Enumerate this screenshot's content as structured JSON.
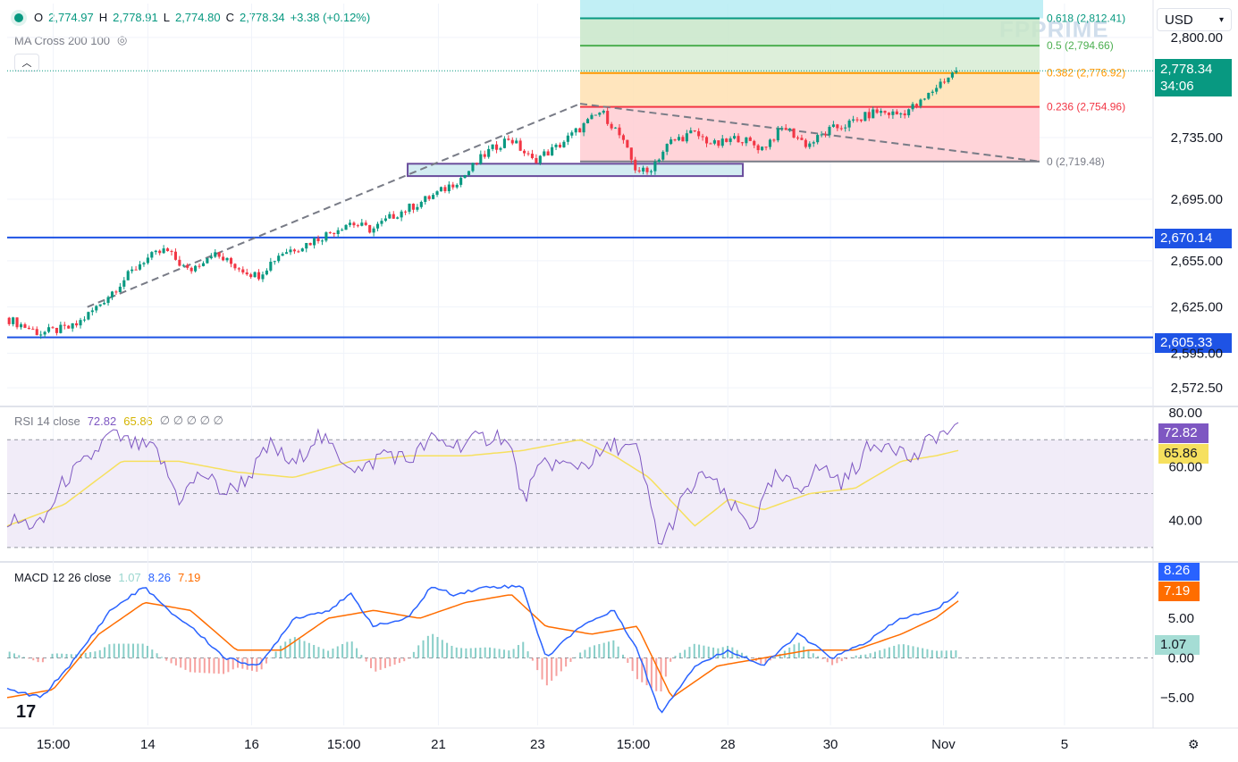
{
  "header": {
    "ohlc": {
      "o_label": "O",
      "o": "2,774.97",
      "h_label": "H",
      "h": "2,778.91",
      "l_label": "L",
      "l": "2,774.80",
      "c_label": "C",
      "c": "2,778.34",
      "change": "+3.38 (+0.12%)"
    },
    "indicator": "MA Cross 200 100",
    "currency": "USD",
    "watermark": "FPPRIME"
  },
  "colors": {
    "up": "#089981",
    "down": "#f23645",
    "support": "#1e53e5",
    "rsi": "#7e57c2",
    "rsi_ma": "#f6e05e",
    "macd": "#2962ff",
    "signal": "#ff6d00",
    "zone": "#6a4c9c"
  },
  "price_tags": {
    "last": "2,778.34",
    "countdown": "34:06",
    "level_1": "2,670.14",
    "level_2": "2,605.33"
  },
  "chart_data": [
    {
      "type": "candlestick",
      "x_ticks": [
        "15:00",
        "14",
        "16",
        "15:00",
        "21",
        "23",
        "15:00",
        "28",
        "30",
        "Nov",
        "5"
      ],
      "y_ticks": [
        2572.5,
        2595.0,
        2625.0,
        2655.0,
        2695.0,
        2735.0,
        2800.0
      ],
      "y_tick_labels": [
        "2,572.50",
        "2,595.00",
        "2,625.00",
        "2,655.00",
        "2,695.00",
        "2,735.00",
        "2,800.00"
      ],
      "ylim": [
        2561,
        2822
      ],
      "close_path": [
        [
          0,
          2618
        ],
        [
          0.03,
          2608
        ],
        [
          0.06,
          2612
        ],
        [
          0.08,
          2625
        ],
        [
          0.1,
          2640
        ],
        [
          0.12,
          2655
        ],
        [
          0.14,
          2662
        ],
        [
          0.16,
          2648
        ],
        [
          0.18,
          2660
        ],
        [
          0.2,
          2652
        ],
        [
          0.22,
          2645
        ],
        [
          0.24,
          2660
        ],
        [
          0.26,
          2665
        ],
        [
          0.28,
          2672
        ],
        [
          0.3,
          2680
        ],
        [
          0.32,
          2675
        ],
        [
          0.34,
          2685
        ],
        [
          0.36,
          2692
        ],
        [
          0.38,
          2700
        ],
        [
          0.4,
          2710
        ],
        [
          0.42,
          2725
        ],
        [
          0.44,
          2735
        ],
        [
          0.46,
          2720
        ],
        [
          0.48,
          2728
        ],
        [
          0.5,
          2740
        ],
        [
          0.52,
          2752
        ],
        [
          0.535,
          2738
        ],
        [
          0.55,
          2715
        ],
        [
          0.56,
          2712
        ],
        [
          0.58,
          2732
        ],
        [
          0.6,
          2738
        ],
        [
          0.62,
          2730
        ],
        [
          0.64,
          2735
        ],
        [
          0.66,
          2728
        ],
        [
          0.68,
          2742
        ],
        [
          0.7,
          2730
        ],
        [
          0.72,
          2740
        ],
        [
          0.74,
          2745
        ],
        [
          0.76,
          2752
        ],
        [
          0.78,
          2750
        ],
        [
          0.8,
          2758
        ],
        [
          0.815,
          2770
        ],
        [
          0.83,
          2778.34
        ]
      ],
      "fib_levels": [
        {
          "ratio": "0.618",
          "label": "0.618 (2,812.41)",
          "value": 2812.41,
          "color": "#089981"
        },
        {
          "ratio": "0.5",
          "label": "0.5 (2,794.66)",
          "value": 2794.66,
          "color": "#4caf50"
        },
        {
          "ratio": "0.382",
          "label": "0.382 (2,776.92)",
          "value": 2776.92,
          "color": "#ff9800"
        },
        {
          "ratio": "0.236",
          "label": "0.236 (2,754.96)",
          "value": 2754.96,
          "color": "#f23645"
        },
        {
          "ratio": "0",
          "label": "0 (2,719.48)",
          "value": 2719.48,
          "color": "#787b86"
        }
      ],
      "support_levels": [
        2670.14,
        2605.33
      ],
      "last_price": 2778.34
    },
    {
      "type": "line",
      "title": "RSI 14 close",
      "series": [
        {
          "name": "RSI",
          "value": "72.82"
        },
        {
          "name": "RSI-based MA",
          "value": "65.86"
        }
      ],
      "markers": "∅ ∅ ∅ ∅ ∅",
      "y_ticks": [
        40.0,
        60.0,
        80.0
      ],
      "y_tick_labels": [
        "40.00",
        "60.00",
        "80.00"
      ],
      "bands": [
        70,
        50,
        30
      ],
      "ylim": [
        25,
        82
      ],
      "rsi_path": [
        [
          0,
          40
        ],
        [
          0.03,
          38
        ],
        [
          0.05,
          55
        ],
        [
          0.07,
          62
        ],
        [
          0.09,
          72
        ],
        [
          0.11,
          68
        ],
        [
          0.13,
          66
        ],
        [
          0.15,
          48
        ],
        [
          0.17,
          58
        ],
        [
          0.19,
          50
        ],
        [
          0.21,
          56
        ],
        [
          0.23,
          68
        ],
        [
          0.25,
          60
        ],
        [
          0.27,
          72
        ],
        [
          0.29,
          64
        ],
        [
          0.31,
          58
        ],
        [
          0.33,
          66
        ],
        [
          0.35,
          62
        ],
        [
          0.37,
          70
        ],
        [
          0.39,
          68
        ],
        [
          0.41,
          70
        ],
        [
          0.43,
          72
        ],
        [
          0.44,
          66
        ],
        [
          0.45,
          48
        ],
        [
          0.47,
          62
        ],
        [
          0.49,
          60
        ],
        [
          0.51,
          62
        ],
        [
          0.53,
          68
        ],
        [
          0.55,
          66
        ],
        [
          0.57,
          30
        ],
        [
          0.59,
          48
        ],
        [
          0.61,
          58
        ],
        [
          0.63,
          46
        ],
        [
          0.65,
          38
        ],
        [
          0.67,
          56
        ],
        [
          0.69,
          52
        ],
        [
          0.71,
          60
        ],
        [
          0.73,
          54
        ],
        [
          0.75,
          66
        ],
        [
          0.77,
          70
        ],
        [
          0.79,
          62
        ],
        [
          0.81,
          72
        ],
        [
          0.83,
          73
        ]
      ],
      "ma_path": [
        [
          0,
          38
        ],
        [
          0.05,
          46
        ],
        [
          0.1,
          62
        ],
        [
          0.15,
          62
        ],
        [
          0.2,
          58
        ],
        [
          0.25,
          56
        ],
        [
          0.3,
          62
        ],
        [
          0.35,
          64
        ],
        [
          0.4,
          64
        ],
        [
          0.45,
          66
        ],
        [
          0.5,
          70
        ],
        [
          0.53,
          64
        ],
        [
          0.56,
          56
        ],
        [
          0.6,
          38
        ],
        [
          0.63,
          48
        ],
        [
          0.66,
          44
        ],
        [
          0.7,
          50
        ],
        [
          0.74,
          52
        ],
        [
          0.78,
          62
        ],
        [
          0.81,
          64
        ],
        [
          0.83,
          66
        ]
      ]
    },
    {
      "type": "line",
      "title": "MACD 12 26 close",
      "series": [
        {
          "name": "Histogram",
          "value": "1.07"
        },
        {
          "name": "MACD",
          "value": "8.26"
        },
        {
          "name": "Signal",
          "value": "7.19"
        }
      ],
      "y_ticks": [
        -5.0,
        0.0,
        5.0
      ],
      "y_tick_labels": [
        "−5.00",
        "0.00",
        "5.00"
      ],
      "ylim": [
        -8.5,
        12
      ],
      "macd_path": [
        [
          0,
          -4
        ],
        [
          0.03,
          -5
        ],
        [
          0.06,
          0
        ],
        [
          0.09,
          6
        ],
        [
          0.12,
          9
        ],
        [
          0.14,
          6
        ],
        [
          0.16,
          4
        ],
        [
          0.19,
          0
        ],
        [
          0.22,
          -1
        ],
        [
          0.25,
          5
        ],
        [
          0.28,
          6
        ],
        [
          0.3,
          8
        ],
        [
          0.32,
          4
        ],
        [
          0.35,
          5
        ],
        [
          0.37,
          9
        ],
        [
          0.39,
          8
        ],
        [
          0.42,
          9
        ],
        [
          0.45,
          9
        ],
        [
          0.47,
          0
        ],
        [
          0.5,
          4
        ],
        [
          0.53,
          6
        ],
        [
          0.55,
          1
        ],
        [
          0.57,
          -7
        ],
        [
          0.6,
          -1
        ],
        [
          0.63,
          1
        ],
        [
          0.66,
          -1
        ],
        [
          0.69,
          3
        ],
        [
          0.72,
          0
        ],
        [
          0.75,
          2
        ],
        [
          0.78,
          5
        ],
        [
          0.81,
          6
        ],
        [
          0.83,
          8.26
        ]
      ],
      "signal_path": [
        [
          0,
          -5
        ],
        [
          0.04,
          -4
        ],
        [
          0.08,
          3
        ],
        [
          0.12,
          7
        ],
        [
          0.16,
          6
        ],
        [
          0.2,
          1
        ],
        [
          0.24,
          1
        ],
        [
          0.28,
          5
        ],
        [
          0.32,
          6
        ],
        [
          0.36,
          5
        ],
        [
          0.4,
          7
        ],
        [
          0.44,
          8
        ],
        [
          0.47,
          4
        ],
        [
          0.51,
          3
        ],
        [
          0.55,
          4
        ],
        [
          0.58,
          -5
        ],
        [
          0.62,
          -1
        ],
        [
          0.66,
          0
        ],
        [
          0.7,
          1
        ],
        [
          0.74,
          1
        ],
        [
          0.78,
          3
        ],
        [
          0.81,
          5
        ],
        [
          0.83,
          7.19
        ]
      ]
    }
  ]
}
